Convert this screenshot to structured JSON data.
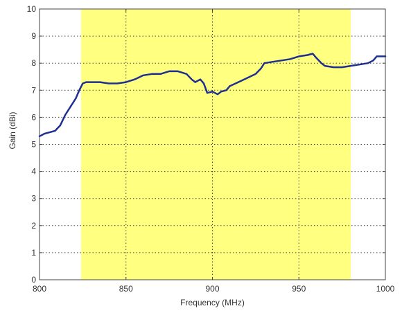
{
  "chart_data": {
    "type": "line",
    "title": "",
    "xlabel": "Frequency (MHz)",
    "ylabel": "Gain (dBi)",
    "xlim": [
      800,
      1000
    ],
    "ylim": [
      0,
      10
    ],
    "x_ticks": [
      800,
      850,
      900,
      950,
      1000
    ],
    "y_ticks": [
      0,
      1,
      2,
      3,
      4,
      5,
      6,
      7,
      8,
      9,
      10
    ],
    "grid": true,
    "grid_style": "dotted",
    "highlight_band": {
      "x_range": [
        824,
        980
      ],
      "color": "#ffff80"
    },
    "series": [
      {
        "color": "#1f2f8f",
        "x": [
          800,
          803,
          806,
          809,
          812,
          815,
          818,
          821,
          823,
          825,
          827,
          830,
          835,
          840,
          845,
          850,
          855,
          860,
          865,
          870,
          875,
          880,
          885,
          888,
          890,
          893,
          895,
          897,
          900,
          903,
          905,
          908,
          910,
          915,
          920,
          925,
          928,
          930,
          935,
          940,
          945,
          950,
          955,
          958,
          960,
          963,
          965,
          970,
          975,
          980,
          985,
          990,
          993,
          995,
          1000
        ],
        "y": [
          5.3,
          5.4,
          5.45,
          5.5,
          5.7,
          6.1,
          6.4,
          6.7,
          7.0,
          7.25,
          7.3,
          7.3,
          7.3,
          7.25,
          7.25,
          7.3,
          7.4,
          7.55,
          7.6,
          7.6,
          7.7,
          7.7,
          7.6,
          7.4,
          7.3,
          7.4,
          7.25,
          6.9,
          6.95,
          6.85,
          6.95,
          7.0,
          7.15,
          7.3,
          7.45,
          7.6,
          7.8,
          8.0,
          8.05,
          8.1,
          8.15,
          8.25,
          8.3,
          8.35,
          8.2,
          8.0,
          7.9,
          7.85,
          7.85,
          7.9,
          7.95,
          8.0,
          8.1,
          8.25,
          8.25
        ]
      }
    ]
  }
}
